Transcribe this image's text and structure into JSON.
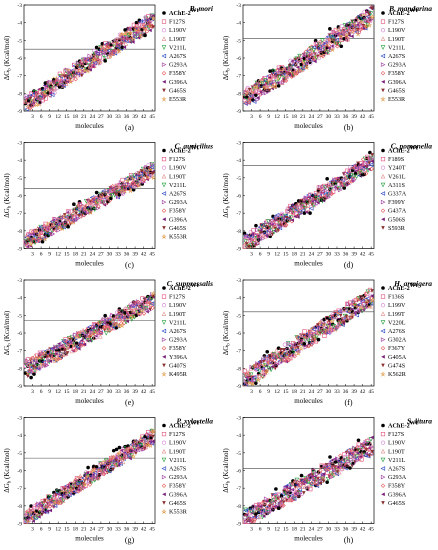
{
  "figure": {
    "xlabel": "molecules",
    "ylabel": "ΔG",
    "ylabel_sub": "b",
    "ylabel_unit": " (Kcal/mol)",
    "xticks": [
      "3",
      "6",
      "9",
      "12",
      "15",
      "18",
      "21",
      "24",
      "27",
      "30",
      "33",
      "36",
      "39",
      "42",
      "45"
    ],
    "yticks": [
      "-3",
      "-4",
      "-5",
      "-6",
      "-7",
      "-8",
      "-9"
    ],
    "symbol_names": [
      "filled-circle",
      "open-square",
      "open-circle",
      "open-triangle-up",
      "open-triangle-down",
      "open-triangle-left",
      "open-triangle-right",
      "open-diamond",
      "filled-triangle-left",
      "filled-triangle-down",
      "open-star",
      "plus"
    ],
    "colors": [
      "#000000",
      "#e0507a",
      "#d080d0",
      "#e09090",
      "#1f9e3a",
      "#2040c0",
      "#a040a0",
      "#e05050",
      "#7a1f7a",
      "#8a3030",
      "#e0a050",
      "#4a4a4a"
    ]
  },
  "chart_data": [
    {
      "type": "scatter",
      "panel": "(a)",
      "title": "B. mori",
      "legend_header": "AChE-2",
      "legend_header_sup": "Wt",
      "series": [
        {
          "name": "AChE-2 Wt"
        },
        {
          "name": "F127S"
        },
        {
          "name": "L190V"
        },
        {
          "name": "L190T"
        },
        {
          "name": "V211L"
        },
        {
          "name": "A267S"
        },
        {
          "name": "G293A"
        },
        {
          "name": "F358Y"
        },
        {
          "name": "G396A"
        },
        {
          "name": "G465S"
        },
        {
          "name": "E553R"
        }
      ],
      "x": [
        1,
        45
      ],
      "ylim": [
        -9,
        -3
      ],
      "hline": -5.5,
      "trend": {
        "start": -8.6,
        "end": -3.9,
        "spread": 0.45
      }
    },
    {
      "type": "scatter",
      "panel": "(b)",
      "title": "B. mandarina",
      "legend_header": "AChE-2",
      "legend_header_sup": "Wt",
      "series": [
        {
          "name": "AChE-2 Wt"
        },
        {
          "name": "F127S"
        },
        {
          "name": "L190V"
        },
        {
          "name": "L190T"
        },
        {
          "name": "V211L"
        },
        {
          "name": "A267S"
        },
        {
          "name": "G293A"
        },
        {
          "name": "F358Y"
        },
        {
          "name": "G396A"
        },
        {
          "name": "G465S"
        },
        {
          "name": "E553R"
        }
      ],
      "x": [
        1,
        45
      ],
      "ylim": [
        -9,
        -3
      ],
      "hline": -4.9,
      "trend": {
        "start": -8.3,
        "end": -3.6,
        "spread": 0.5
      }
    },
    {
      "type": "scatter",
      "panel": "(c)",
      "title": "C. auricilius",
      "legend_header": "AChE-2",
      "legend_header_sup": "Wt",
      "series": [
        {
          "name": "AChE-2 Wt"
        },
        {
          "name": "F127S"
        },
        {
          "name": "L190V"
        },
        {
          "name": "L190T"
        },
        {
          "name": "V211L"
        },
        {
          "name": "A267S"
        },
        {
          "name": "G293A"
        },
        {
          "name": "F358Y"
        },
        {
          "name": "G396A"
        },
        {
          "name": "G465S"
        },
        {
          "name": "K553R"
        }
      ],
      "x": [
        1,
        45
      ],
      "ylim": [
        -9,
        -3
      ],
      "hline": -5.6,
      "trend": {
        "start": -8.6,
        "end": -4.6,
        "spread": 0.4
      }
    },
    {
      "type": "scatter",
      "panel": "(d)",
      "title": "C. pomonella",
      "legend_header": "AChE-2",
      "legend_header_sup": "Wt",
      "series": [
        {
          "name": "AChE-2 Wt"
        },
        {
          "name": "F189S"
        },
        {
          "name": "Y240T"
        },
        {
          "name": "V261L"
        },
        {
          "name": "A311S"
        },
        {
          "name": "G337A"
        },
        {
          "name": "F399Y"
        },
        {
          "name": "G437A"
        },
        {
          "name": "G506S"
        },
        {
          "name": "S593R"
        }
      ],
      "x": [
        1,
        45
      ],
      "ylim": [
        -9,
        -3
      ],
      "hline": -4.3,
      "trend": {
        "start": -8.7,
        "end": -4.1,
        "spread": 0.45
      }
    },
    {
      "type": "scatter",
      "panel": "(e)",
      "title": "C. suppressalis",
      "legend_header": "AChE-2",
      "legend_header_sup": "Wt",
      "series": [
        {
          "name": "AChE-2 Wt"
        },
        {
          "name": "F127S"
        },
        {
          "name": "L190V"
        },
        {
          "name": "L190T"
        },
        {
          "name": "V211L"
        },
        {
          "name": "A267S"
        },
        {
          "name": "G293A"
        },
        {
          "name": "F358Y"
        },
        {
          "name": "Y396A"
        },
        {
          "name": "G407S"
        },
        {
          "name": "K495R"
        }
      ],
      "x": [
        1,
        45
      ],
      "ylim": [
        -9,
        -3
      ],
      "hline": -5.3,
      "trend": {
        "start": -8.0,
        "end": -4.2,
        "spread": 0.45
      }
    },
    {
      "type": "scatter",
      "panel": "(f)",
      "title": "H. armigera",
      "legend_header": "AChE-2",
      "legend_header_sup": "Wt",
      "series": [
        {
          "name": "AChE-2 Wt"
        },
        {
          "name": "F136S"
        },
        {
          "name": "L199V"
        },
        {
          "name": "L199T"
        },
        {
          "name": "V220L"
        },
        {
          "name": "A276S"
        },
        {
          "name": "G302A"
        },
        {
          "name": "F367Y"
        },
        {
          "name": "G405A"
        },
        {
          "name": "G474S"
        },
        {
          "name": "K562R"
        }
      ],
      "x": [
        1,
        45
      ],
      "ylim": [
        -9,
        -3
      ],
      "hline": -4.8,
      "trend": {
        "start": -8.6,
        "end": -4.0,
        "spread": 0.5
      }
    },
    {
      "type": "scatter",
      "panel": "(g)",
      "title": "P. xylostella",
      "legend_header": "AChE-2",
      "legend_header_sup": "Wt",
      "series": [
        {
          "name": "AChE-2 Wt"
        },
        {
          "name": "F127S"
        },
        {
          "name": "L190V"
        },
        {
          "name": "L190T"
        },
        {
          "name": "V211L"
        },
        {
          "name": "A267S"
        },
        {
          "name": "G293A"
        },
        {
          "name": "F358Y"
        },
        {
          "name": "G396A"
        },
        {
          "name": "G465S"
        },
        {
          "name": "K553R"
        }
      ],
      "x": [
        1,
        45
      ],
      "ylim": [
        -9,
        -3
      ],
      "hline": -5.3,
      "trend": {
        "start": -8.7,
        "end": -4.1,
        "spread": 0.4
      }
    },
    {
      "type": "scatter",
      "panel": "(h)",
      "title": "S. litura",
      "legend_header": "AChE-2",
      "legend_header_sup": "Wt",
      "series": [
        {
          "name": "AChE-2 Wt"
        },
        {
          "name": "F127S"
        },
        {
          "name": "L190V"
        },
        {
          "name": "L190T"
        },
        {
          "name": "V211L"
        },
        {
          "name": "A267S"
        },
        {
          "name": "G293A"
        },
        {
          "name": "F358Y"
        },
        {
          "name": "G396A"
        },
        {
          "name": "G465S"
        }
      ],
      "x": [
        1,
        45
      ],
      "ylim": [
        -9,
        -3
      ],
      "hline": -5.9,
      "trend": {
        "start": -8.7,
        "end": -4.6,
        "spread": 0.5
      }
    }
  ]
}
